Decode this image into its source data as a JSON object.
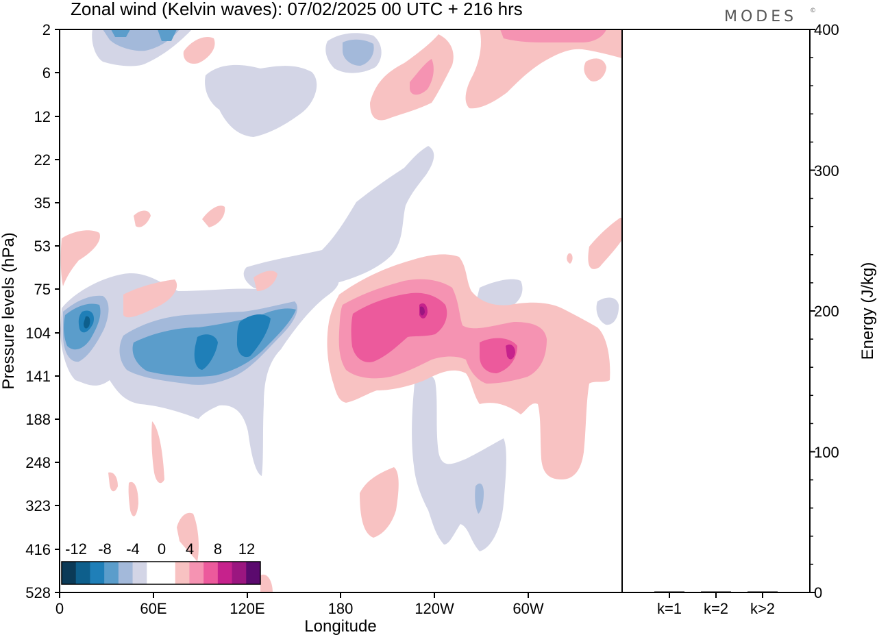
{
  "title": "Zonal wind (Kelvin waves):  07/02/2025  00 UTC  + 216 hrs",
  "brand": "MODES",
  "brand_mark": "©",
  "chart_data": [
    {
      "type": "heatmap",
      "variable": "Zonal wind (Kelvin waves)",
      "xlabel": "Longitude",
      "ylabel": "Pressure levels (hPa)",
      "x_ticks": [
        "0",
        "60E",
        "120E",
        "180",
        "120W",
        "60W"
      ],
      "y_ticks": [
        "2",
        "6",
        "12",
        "22",
        "35",
        "53",
        "75",
        "104",
        "141",
        "188",
        "248",
        "323",
        "416",
        "528"
      ],
      "colorbar": {
        "labels": [
          "-12",
          "-8",
          "-4",
          "0",
          "4",
          "8",
          "12"
        ],
        "colors": [
          "#0b3a57",
          "#0e5f8c",
          "#1f7fb8",
          "#5b9dcb",
          "#a3b9da",
          "#d3d5e6",
          "#ffffff",
          "#ffffff",
          "#f8c2c2",
          "#f593b2",
          "#ec5a9c",
          "#c6228c",
          "#9b1680",
          "#5b0a6e"
        ]
      },
      "features": [
        {
          "sign": "negative",
          "level": -10,
          "lon_range": [
            5,
            150
          ],
          "pressure_range": [
            80,
            170
          ]
        },
        {
          "sign": "negative",
          "level": -4,
          "lon_range": [
            60,
            240
          ],
          "pressure_range": [
            20,
            90
          ]
        },
        {
          "sign": "negative",
          "level": -4,
          "lon_range": [
            225,
            285
          ],
          "pressure_range": [
            150,
            420
          ]
        },
        {
          "sign": "positive",
          "level": 10,
          "lon_range": [
            180,
            310
          ],
          "pressure_range": [
            80,
            170
          ]
        },
        {
          "sign": "positive",
          "level": 4,
          "lon_range": [
            195,
            360
          ],
          "pressure_range": [
            70,
            330
          ]
        },
        {
          "sign": "positive",
          "level": 4,
          "lon_range": [
            195,
            360
          ],
          "pressure_range": [
            2,
            16
          ]
        },
        {
          "sign": "negative",
          "level": -4,
          "lon_range": [
            20,
            210
          ],
          "pressure_range": [
            2,
            10
          ]
        }
      ]
    },
    {
      "type": "bar",
      "categories": [
        "k=1",
        "k=2",
        "k>2"
      ],
      "values": [
        0.6,
        0.2,
        0.6
      ],
      "ylabel": "Energy (J/kg)",
      "ylim": [
        0,
        400
      ],
      "y_ticks": [
        "0",
        "100",
        "200",
        "300",
        "400"
      ]
    }
  ]
}
